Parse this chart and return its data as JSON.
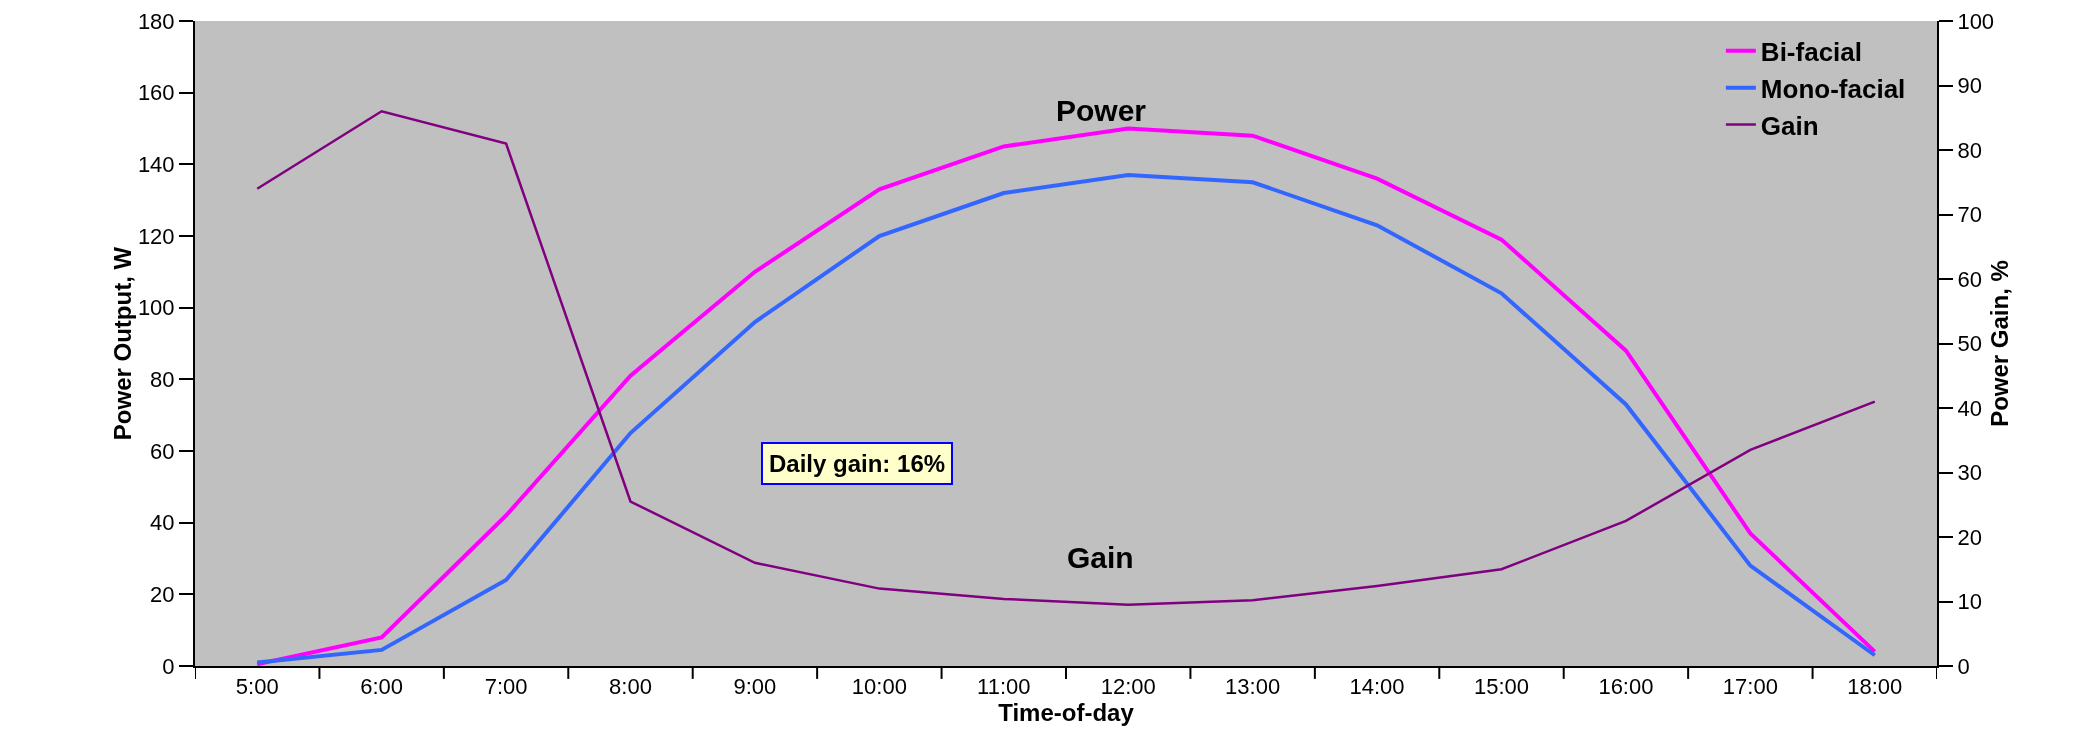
{
  "chart_data": {
    "type": "line",
    "xlabel": "Time-of-day",
    "ylabel": "Power Output, W",
    "y2label": "Power Gain, %",
    "categories": [
      "5:00",
      "6:00",
      "7:00",
      "8:00",
      "9:00",
      "10:00",
      "11:00",
      "12:00",
      "13:00",
      "14:00",
      "15:00",
      "16:00",
      "17:00",
      "18:00"
    ],
    "series": [
      {
        "name": "Bi-facial",
        "color": "#ff00ff",
        "values": [
          0.5,
          8,
          42,
          81,
          110,
          133,
          145,
          150,
          148,
          136,
          119,
          88,
          37,
          4
        ]
      },
      {
        "name": "Mono-facial",
        "color": "#3366ff",
        "values": [
          1,
          4.5,
          24,
          65,
          96,
          120,
          132,
          137,
          135,
          123,
          104,
          73,
          28,
          3
        ]
      },
      {
        "name": "Gain",
        "color": "#800080",
        "axis": "y2",
        "values": [
          74,
          86,
          81,
          25.5,
          16,
          12,
          10.4,
          9.5,
          10.2,
          12.4,
          15,
          22.5,
          33.5,
          41
        ]
      }
    ],
    "ylim": [
      0,
      180
    ],
    "yticks": [
      0,
      20,
      40,
      60,
      80,
      100,
      120,
      140,
      160,
      180
    ],
    "y2lim": [
      0,
      100
    ],
    "y2ticks": [
      0,
      10,
      20,
      30,
      40,
      50,
      60,
      70,
      80,
      90,
      100
    ],
    "annotations": [
      "Power",
      "Gain",
      "Daily gain: 16%"
    ],
    "grid": false,
    "legend": "top right",
    "marker": "none",
    "line_style": "solid"
  }
}
